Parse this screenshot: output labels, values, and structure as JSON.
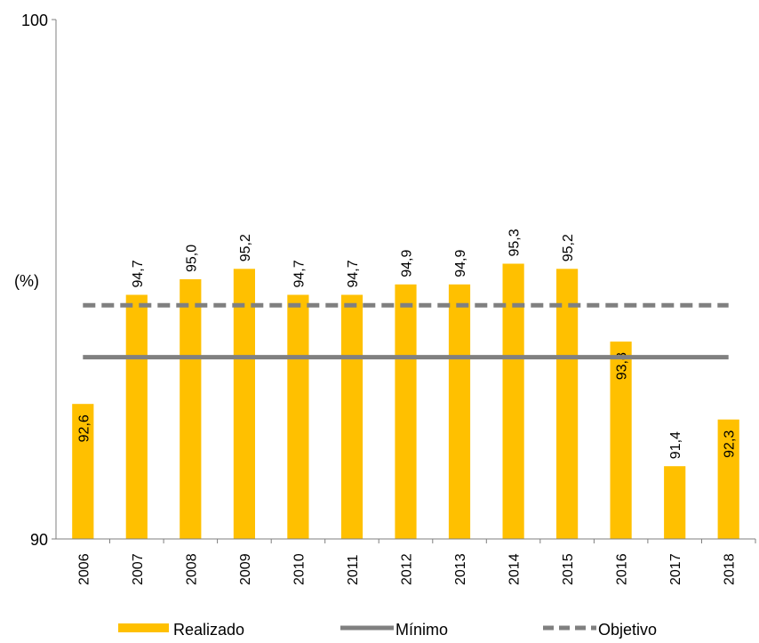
{
  "chart_data": {
    "type": "bar",
    "categories": [
      "2006",
      "2007",
      "2008",
      "2009",
      "2010",
      "2011",
      "2012",
      "2013",
      "2014",
      "2015",
      "2016",
      "2017",
      "2018"
    ],
    "series": [
      {
        "name": "Realizado",
        "type": "bar",
        "color": "#FFC000",
        "values": [
          92.6,
          94.7,
          95.0,
          95.2,
          94.7,
          94.7,
          94.9,
          94.9,
          95.3,
          95.2,
          93.8,
          91.4,
          92.3
        ],
        "labels": [
          "92,6",
          "94,7",
          "95,0",
          "95,2",
          "94,7",
          "94,7",
          "94,9",
          "94,9",
          "95,3",
          "95,2",
          "93,8",
          "91,4",
          "92,3"
        ],
        "value_display": [
          92.6,
          94.7,
          95.0,
          95.2,
          94.7,
          94.7,
          94.9,
          94.9,
          95.3,
          95.2,
          93.8,
          91.4,
          92.3
        ]
      },
      {
        "name": "Mínimo",
        "type": "line",
        "style": "solid",
        "color": "#808080",
        "value": 93.5
      },
      {
        "name": "Objetivo",
        "type": "line",
        "style": "dashed",
        "color": "#808080",
        "value": 94.5
      }
    ],
    "ylabel": "(%)",
    "ylim": [
      90,
      100
    ],
    "yticks": [
      "90",
      "100"
    ],
    "grid": false,
    "legend_position": "bottom"
  }
}
